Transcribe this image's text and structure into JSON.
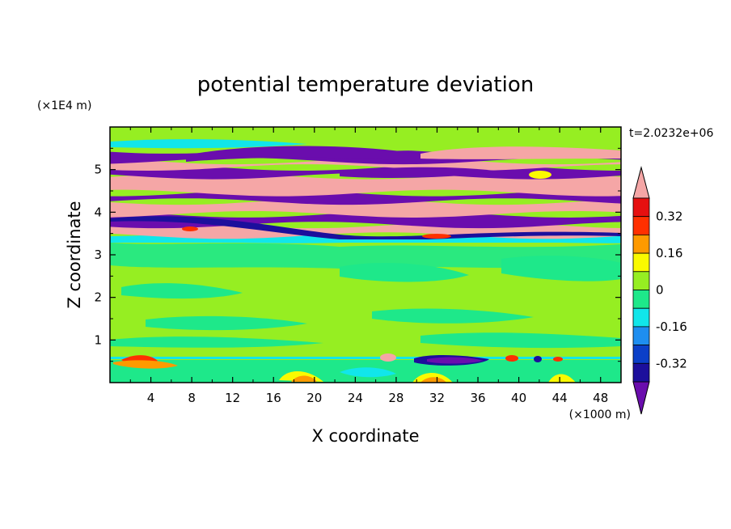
{
  "chart_data": {
    "type": "heatmap",
    "title": "potential temperature deviation",
    "xlabel": "X coordinate",
    "ylabel": "Z coordinate",
    "x_unit": "(×1000 m)",
    "y_unit": "(×1E4 m)",
    "time_label": "t=2.0232e+06",
    "xlim": [
      0,
      50
    ],
    "ylim": [
      0,
      6
    ],
    "x_ticks": [
      4,
      8,
      12,
      16,
      20,
      24,
      28,
      32,
      36,
      40,
      44,
      48
    ],
    "y_ticks": [
      1,
      2,
      3,
      4,
      5
    ],
    "colorbar": {
      "levels": [
        -0.4,
        -0.32,
        -0.24,
        -0.16,
        -0.08,
        0,
        0.08,
        0.16,
        0.24,
        0.32,
        0.4
      ],
      "labels": [
        "0.32",
        "0.16",
        "0",
        "-0.16",
        "-0.32"
      ],
      "label_values": [
        0.32,
        0.16,
        0,
        -0.16,
        -0.32
      ],
      "colors": [
        "#6a0dad",
        "#1c0f9c",
        "#0b3fc8",
        "#1e8ef0",
        "#11e6ea",
        "#1ee88a",
        "#96ee22",
        "#fafa00",
        "#fe9a00",
        "#ff3000",
        "#e61010",
        "#f5a6a6"
      ]
    },
    "layers": [
      {
        "z": [
          0.0,
          0.55
        ],
        "value": 0.0,
        "description_color": "#1ee88a"
      },
      {
        "z": [
          0.55,
          3.3
        ],
        "value": 0.05,
        "description_color": "#96ee22"
      },
      {
        "z": [
          3.3,
          3.45
        ],
        "value": -0.1,
        "description_color": "#11e6ea"
      },
      {
        "z": [
          3.45,
          3.7
        ],
        "value": 0.45,
        "description_color": "#f5a6a6"
      },
      {
        "z": [
          3.7,
          3.95
        ],
        "value": -0.45,
        "description_color": "#6a0dad"
      },
      {
        "z": [
          3.95,
          4.25
        ],
        "value": 0.45,
        "description_color": "#f5a6a6"
      },
      {
        "z": [
          4.25,
          4.45
        ],
        "value": -0.45,
        "description_color": "#6a0dad"
      },
      {
        "z": [
          4.45,
          4.85
        ],
        "value": 0.45,
        "description_color": "#f5a6a6"
      },
      {
        "z": [
          4.85,
          5.05
        ],
        "value": -0.45,
        "description_color": "#6a0dad"
      },
      {
        "z": [
          5.05,
          5.2
        ],
        "value": 0.45,
        "description_color": "#f5a6a6"
      },
      {
        "z": [
          5.2,
          5.45
        ],
        "value": -0.45,
        "description_color": "#6a0dad"
      },
      {
        "z": [
          5.45,
          6.0
        ],
        "value": 0.05,
        "description_color": "#96ee22"
      }
    ]
  }
}
